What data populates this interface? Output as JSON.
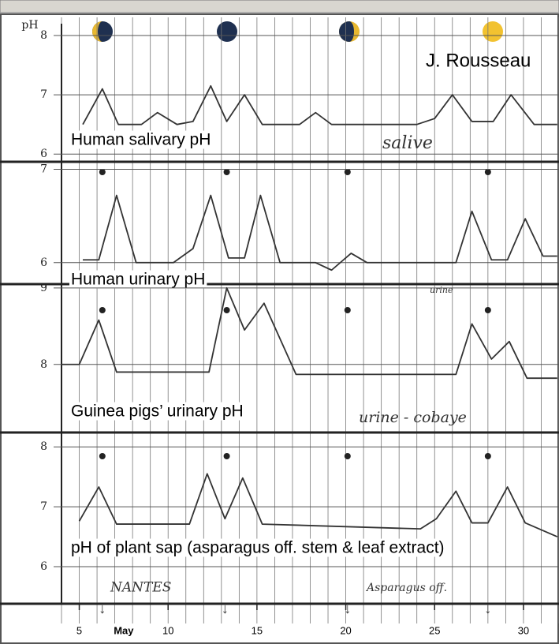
{
  "chart_data": [
    {
      "type": "line",
      "title": "Human salivary pH",
      "ylabel": "pH",
      "annotations": [
        "J. Rousseau",
        "salive"
      ],
      "x": [
        5.2,
        6.3,
        7.2,
        8.5,
        9.4,
        10.5,
        11.4,
        12.4,
        13.3,
        14.3,
        15.3,
        17.4,
        18.3,
        19.2,
        24.0,
        25.0,
        26.0,
        27.1,
        28.3,
        29.3,
        30.6,
        31.9
      ],
      "values": [
        6.5,
        7.1,
        6.5,
        6.5,
        6.7,
        6.5,
        6.55,
        7.15,
        6.55,
        7.0,
        6.5,
        6.5,
        6.7,
        6.5,
        6.5,
        6.6,
        7.0,
        6.55,
        6.55,
        7.0,
        6.5,
        6.5
      ],
      "color": "#333333",
      "xlim": [
        4,
        32
      ],
      "ylim": [
        5.87,
        8.2
      ],
      "yticks": [
        8,
        7,
        6
      ]
    },
    {
      "type": "line",
      "title": "Human urinary pH",
      "annotations": [
        "urine"
      ],
      "x": [
        5.2,
        6.1,
        7.1,
        8.2,
        10.3,
        11.4,
        12.4,
        13.4,
        14.3,
        15.2,
        16.3,
        18.3,
        19.2,
        20.3,
        21.2,
        26.2,
        27.1,
        28.2,
        29.1,
        30.1,
        31.1,
        31.9
      ],
      "values": [
        6.03,
        6.03,
        6.72,
        6.0,
        6.0,
        6.15,
        6.72,
        6.05,
        6.05,
        6.72,
        6.0,
        6.0,
        5.92,
        6.1,
        6.0,
        6.0,
        6.55,
        6.03,
        6.03,
        6.47,
        6.07,
        6.07
      ],
      "color": "#333333",
      "xlim": [
        4,
        32
      ],
      "ylim": [
        5.77,
        7.08
      ],
      "yticks": [
        7,
        6
      ]
    },
    {
      "type": "line",
      "title": "Guinea pigs’ urinary pH",
      "annotations": [
        "urine - cobaye"
      ],
      "x": [
        4.0,
        5.0,
        6.1,
        7.1,
        12.3,
        13.3,
        14.3,
        15.4,
        17.2,
        26.2,
        27.1,
        28.2,
        29.2,
        30.2,
        31.9
      ],
      "values": [
        8.0,
        8.0,
        8.58,
        7.9,
        7.9,
        9.0,
        8.45,
        8.8,
        7.87,
        7.87,
        8.53,
        8.07,
        8.3,
        7.82,
        7.82
      ],
      "color": "#333333",
      "xlim": [
        4,
        32
      ],
      "ylim": [
        7.11,
        9.05
      ],
      "yticks": [
        9,
        8
      ]
    },
    {
      "type": "line",
      "title": "pH of plant sap (asparagus off. stem & leaf extract)",
      "annotations": [
        "NANTES",
        "Asparagus off."
      ],
      "x": [
        5.0,
        6.1,
        7.1,
        11.2,
        12.2,
        13.2,
        14.2,
        15.3,
        24.2,
        25.1,
        26.2,
        27.1,
        28.0,
        29.1,
        30.1,
        31.9
      ],
      "values": [
        6.76,
        7.33,
        6.71,
        6.71,
        7.55,
        6.8,
        7.48,
        6.71,
        6.63,
        6.8,
        7.26,
        6.73,
        6.73,
        7.33,
        6.73,
        6.5
      ],
      "color": "#333333",
      "xlim": [
        4,
        32
      ],
      "ylim": [
        5.38,
        8.24
      ],
      "yticks": [
        8,
        7,
        6
      ],
      "xlabel": "May",
      "xticks": [
        5,
        10,
        15,
        20,
        25,
        30
      ]
    }
  ]
}
